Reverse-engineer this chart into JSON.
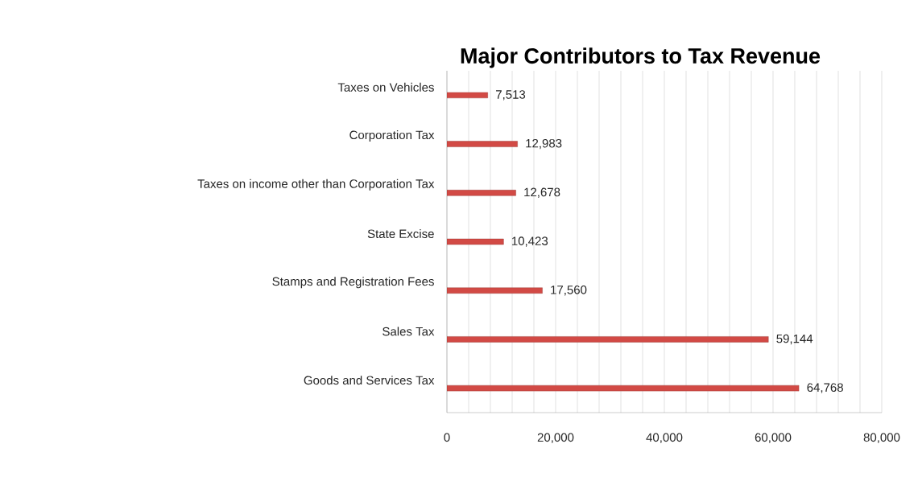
{
  "chart_data": {
    "type": "bar",
    "orientation": "horizontal",
    "title": "Major Contributors to Tax Revenue",
    "categories": [
      "Taxes on Vehicles",
      "Corporation Tax",
      "Taxes on income other than Corporation Tax",
      "State Excise",
      "Stamps and Registration Fees",
      "Sales Tax",
      "Goods and Services Tax"
    ],
    "values": [
      7513,
      12983,
      12678,
      10423,
      17560,
      59144,
      64768
    ],
    "value_labels": [
      "7,513",
      "12,983",
      "12,678",
      "10,423",
      "17,560",
      "59,144",
      "64,768"
    ],
    "color": "#d24a45",
    "xlim": [
      0,
      80000
    ],
    "xticks": [
      {
        "value": 0,
        "label": "0"
      },
      {
        "value": 4000,
        "label": null
      },
      {
        "value": 8000,
        "label": null
      },
      {
        "value": 12000,
        "label": null
      },
      {
        "value": 16000,
        "label": null
      },
      {
        "value": 20000,
        "label": "20,000"
      },
      {
        "value": 24000,
        "label": null
      },
      {
        "value": 28000,
        "label": null
      },
      {
        "value": 32000,
        "label": null
      },
      {
        "value": 36000,
        "label": null
      },
      {
        "value": 40000,
        "label": "40,000"
      },
      {
        "value": 44000,
        "label": null
      },
      {
        "value": 48000,
        "label": null
      },
      {
        "value": 52000,
        "label": null
      },
      {
        "value": 56000,
        "label": null
      },
      {
        "value": 60000,
        "label": "60,000"
      },
      {
        "value": 64000,
        "label": null
      },
      {
        "value": 68000,
        "label": null
      },
      {
        "value": 72000,
        "label": null
      },
      {
        "value": 76000,
        "label": null
      },
      {
        "value": 80000,
        "label": "80,000"
      }
    ],
    "grid": "x"
  }
}
